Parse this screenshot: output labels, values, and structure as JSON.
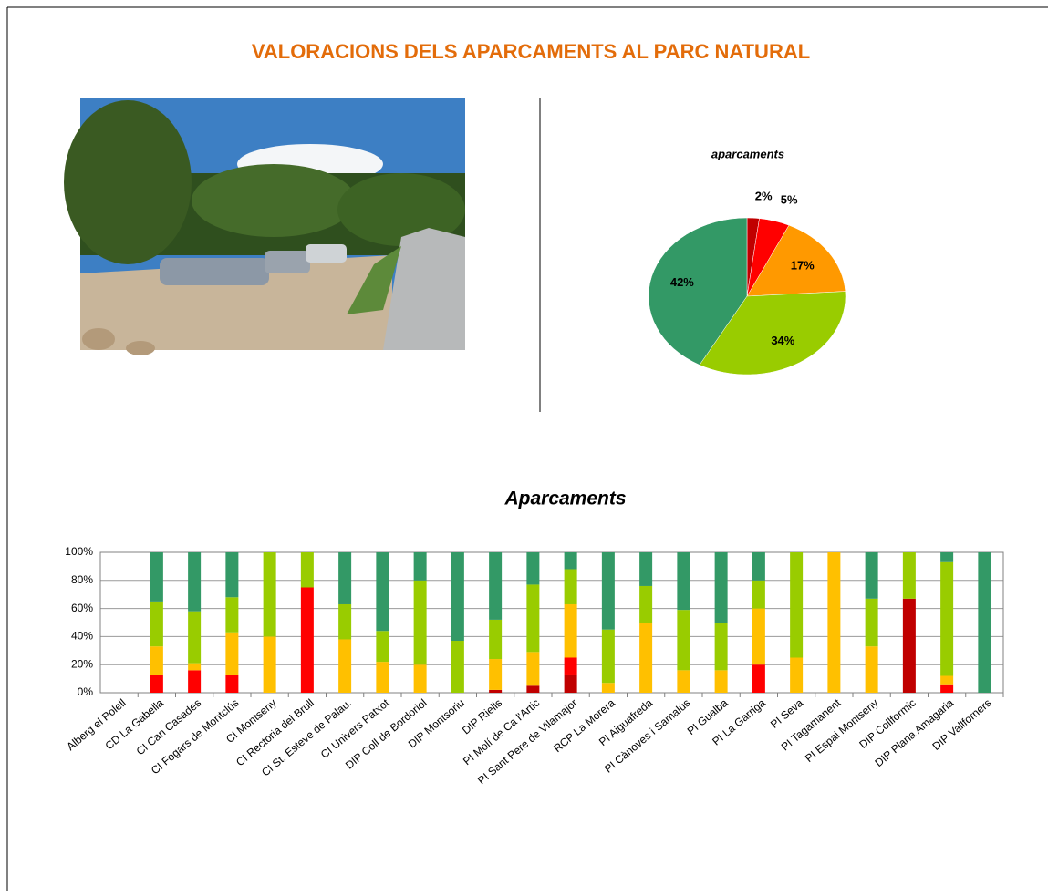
{
  "title": "VALORACIONS DELS APARCAMENTS AL PARC NATURAL",
  "chart_data": [
    {
      "type": "pie",
      "title": "aparcaments",
      "values": [
        2,
        5,
        17,
        34,
        42
      ],
      "value_labels": [
        "2%",
        "5%",
        "17%",
        "34%",
        "42%"
      ],
      "colors": [
        "#c00000",
        "#ff0000",
        "#ff9900",
        "#99cc00",
        "#339966"
      ]
    },
    {
      "type": "stacked_bar",
      "title": "Aparcaments",
      "categories": [
        "Alberg el Polell",
        "CD La Gabella",
        "CI Can Casades",
        "CI Fogars de Montclús",
        "CI Montseny",
        "CI Rectoria del Brull",
        "CI St. Esteve de Palau.",
        "CI Univers Patxot",
        "DIP Coll de Bordoriol",
        "DIP Montsoriu",
        "DIP Riells",
        "PI Molí de Ca l'Artic",
        "PI Sant Pere de Vilamajor",
        "RCP La Morera",
        "PI Aiguafreda",
        "PI Cànoves i Samalús",
        "PI Gualba",
        "PI La Garriga",
        "PI Seva",
        "PI Tagamanent",
        "PI Espai Montseny",
        "DIP Collformic",
        "DIP Plana Amagaria",
        "DIP Vallforners"
      ],
      "series": [
        {
          "color": "#c00000",
          "values": [
            0,
            0,
            0,
            0,
            0,
            0,
            0,
            0,
            0,
            0,
            2,
            5,
            13,
            0,
            0,
            0,
            0,
            0,
            0,
            0,
            0,
            67,
            0,
            0
          ]
        },
        {
          "color": "#ff0000",
          "values": [
            0,
            13,
            16,
            13,
            0,
            75,
            0,
            0,
            0,
            0,
            0,
            0,
            12,
            0,
            0,
            0,
            0,
            20,
            0,
            0,
            0,
            0,
            6,
            0
          ]
        },
        {
          "color": "#ffc000",
          "values": [
            0,
            20,
            5,
            30,
            40,
            0,
            38,
            22,
            20,
            0,
            22,
            24,
            38,
            7,
            50,
            16,
            16,
            40,
            25,
            100,
            33,
            0,
            6,
            0
          ]
        },
        {
          "color": "#99cc00",
          "values": [
            0,
            32,
            37,
            25,
            60,
            25,
            25,
            22,
            60,
            37,
            28,
            48,
            25,
            38,
            26,
            43,
            34,
            20,
            75,
            0,
            34,
            33,
            81,
            0
          ]
        },
        {
          "color": "#339966",
          "values": [
            0,
            35,
            42,
            32,
            0,
            0,
            37,
            56,
            20,
            63,
            48,
            23,
            12,
            55,
            24,
            41,
            50,
            20,
            0,
            0,
            33,
            0,
            7,
            100
          ]
        }
      ],
      "ylim": [
        0,
        100
      ],
      "yticks": [
        {
          "value": 0,
          "label": "0%"
        },
        {
          "value": 20,
          "label": "20%"
        },
        {
          "value": 40,
          "label": "40%"
        },
        {
          "value": 60,
          "label": "60%"
        },
        {
          "value": 80,
          "label": "80%"
        },
        {
          "value": 100,
          "label": "100%"
        }
      ],
      "grid": true
    }
  ]
}
